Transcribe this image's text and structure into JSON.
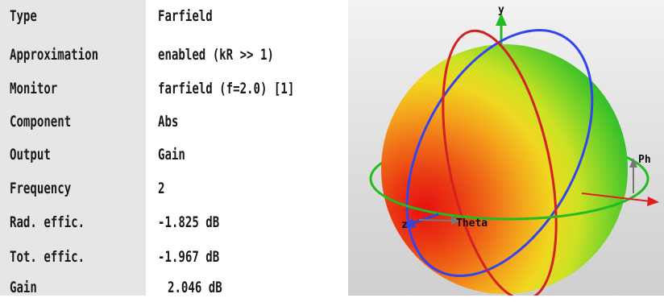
{
  "properties": [
    {
      "label": "Type",
      "value": "Farfield"
    },
    {
      "label": "Approximation",
      "value": "enabled (kR >> 1)"
    },
    {
      "label": "Monitor",
      "value": "farfield (f=2.0) [1]"
    },
    {
      "label": "Component",
      "value": "Abs"
    },
    {
      "label": "Output",
      "value": "Gain"
    },
    {
      "label": "Frequency",
      "value": "2"
    },
    {
      "label": "Rad. effic.",
      "value": "-1.825 dB"
    },
    {
      "label": "Tot. effic.",
      "value": "-1.967 dB"
    },
    {
      "label": "Gain",
      "value": "2.046 dB"
    }
  ],
  "viewport": {
    "axis_y_label": "y",
    "axis_z_label": "z",
    "phi_label": "Ph",
    "theta_label": "Theta",
    "colors": {
      "x_axis": "#e02020",
      "y_axis": "#22bb22",
      "z_axis": "#3344dd",
      "phi_ring": "#22bb22",
      "theta_ring": "#d42020",
      "phi_meridian": "#3344ee",
      "pattern_max": "#e81010",
      "pattern_mid": "#f0e020",
      "pattern_min": "#22bb22"
    }
  }
}
